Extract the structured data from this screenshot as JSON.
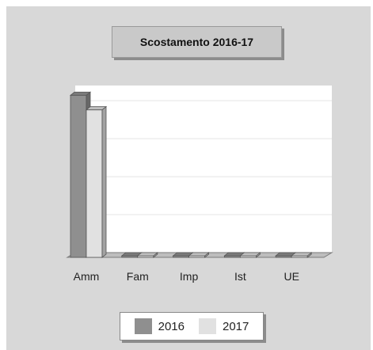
{
  "chart_data": {
    "type": "bar",
    "title": "Scostamento 2016-17",
    "categories": [
      "Amm",
      "Fam",
      "Imp",
      "Ist",
      "UE"
    ],
    "series": [
      {
        "name": "2016",
        "values": [
          100,
          0,
          0,
          0,
          0
        ],
        "color": "#8f8f8f"
      },
      {
        "name": "2017",
        "values": [
          91,
          0,
          0,
          0,
          0
        ],
        "color": "#e1e1e1"
      }
    ],
    "ylim": [
      0,
      106
    ],
    "grid": true,
    "style": "3d",
    "legend_position": "bottom"
  }
}
